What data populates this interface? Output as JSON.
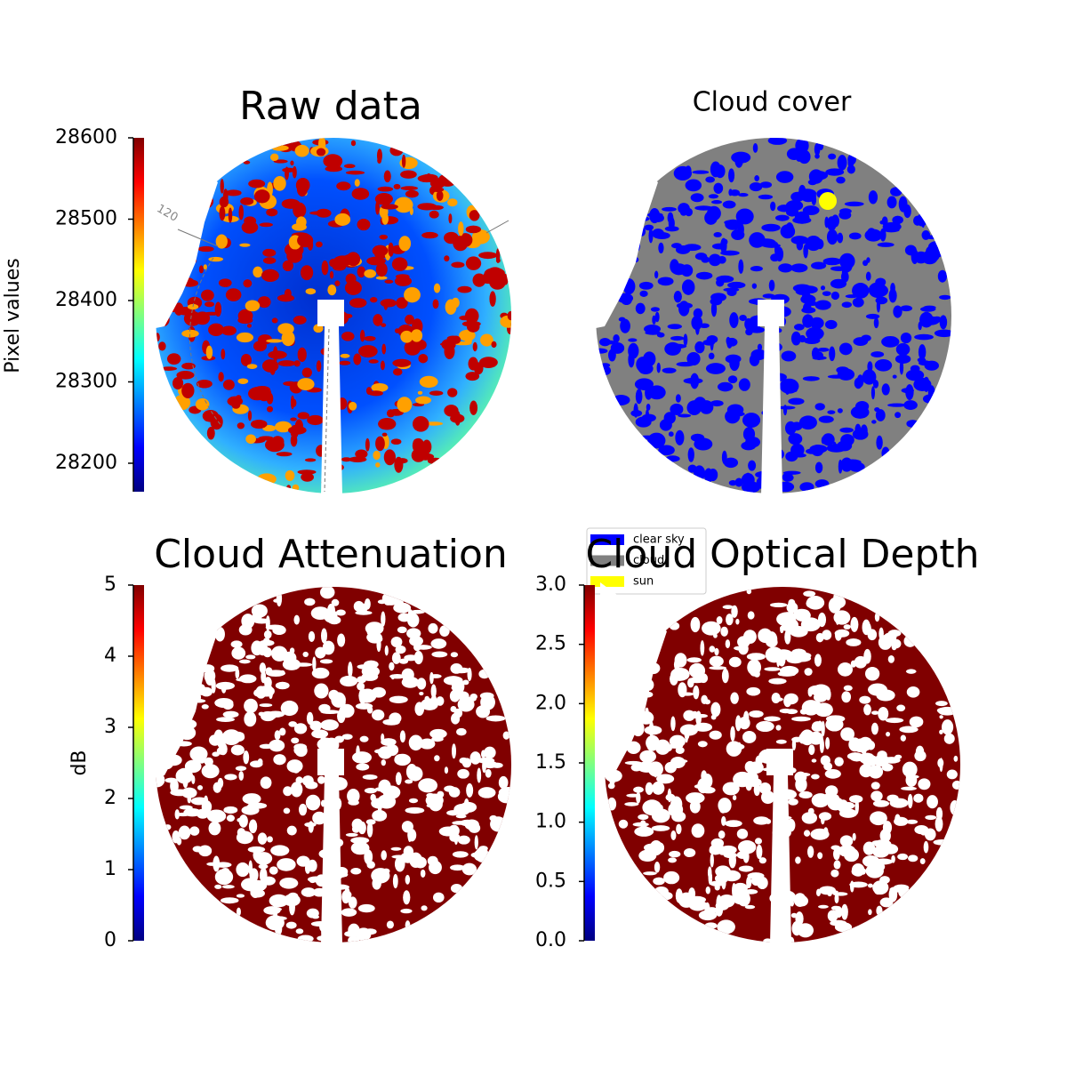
{
  "chart_data": [
    {
      "type": "image",
      "title": "Raw data",
      "colorbar": {
        "label": "Pixel values",
        "colormap": "jet",
        "ylim": [
          28165,
          28600
        ],
        "yticks": [
          28200,
          28300,
          28400,
          28500,
          28600
        ]
      },
      "annotations": [
        "120"
      ]
    },
    {
      "type": "image",
      "title": "Cloud cover",
      "legend": [
        {
          "name": "clear sky",
          "color": "#0000ff"
        },
        {
          "name": "cloud",
          "color": "#808080"
        },
        {
          "name": "sun",
          "color": "#ffff00"
        }
      ]
    },
    {
      "type": "image",
      "title": "Cloud Attenuation",
      "colorbar": {
        "label": "dB",
        "colormap": "jet",
        "ylim": [
          0,
          5
        ],
        "yticks": [
          0,
          1,
          2,
          3,
          4,
          5
        ]
      }
    },
    {
      "type": "image",
      "title": "Cloud Optical Depth",
      "colorbar": {
        "colormap": "jet",
        "ylim": [
          0,
          3
        ],
        "yticks": [
          {
            "value": 0,
            "label": "0.0"
          },
          {
            "value": 0.5,
            "label": "0.5"
          },
          {
            "value": 1,
            "label": "1.0"
          },
          {
            "value": 1.5,
            "label": "1.5"
          },
          {
            "value": 2,
            "label": "2.0"
          },
          {
            "value": 2.5,
            "label": "2.5"
          },
          {
            "value": 3,
            "label": "3.0"
          }
        ]
      }
    }
  ]
}
